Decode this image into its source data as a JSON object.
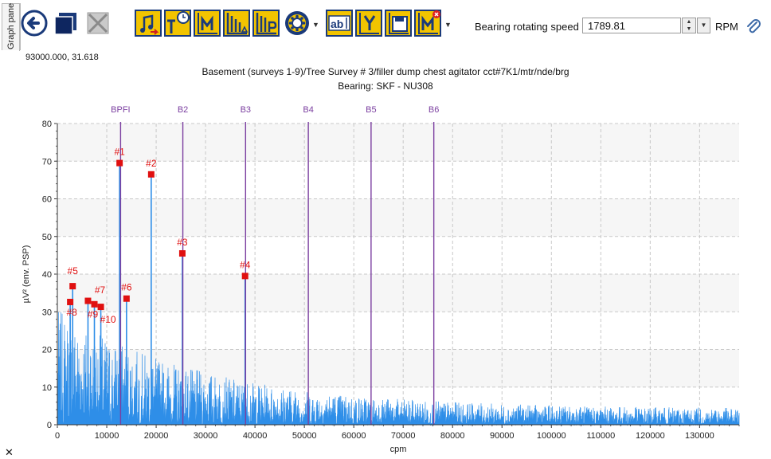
{
  "side_tab": {
    "label": "Graph pane"
  },
  "toolbar": {
    "buttons": [
      {
        "name": "back-button",
        "icon": "back-arrow-icon"
      },
      {
        "name": "window-button",
        "icon": "window-icon"
      },
      {
        "name": "disabled-view-button",
        "icon": "cross-box-icon"
      },
      {
        "name": "music-export-button",
        "icon": "note-export-icon"
      },
      {
        "name": "time-cursor-button",
        "icon": "t-clock-icon"
      },
      {
        "name": "m-marker-button",
        "icon": "m-cursor-icon"
      },
      {
        "name": "harmonic-button",
        "icon": "harmonic-cursor-icon"
      },
      {
        "name": "peak-button",
        "icon": "p-cursor-icon"
      },
      {
        "name": "bearing-button",
        "icon": "bearing-icon"
      },
      {
        "name": "text-label-button",
        "icon": "ab-text-icon"
      },
      {
        "name": "y-cursor-button",
        "icon": "y-cursor-icon"
      },
      {
        "name": "save-button",
        "icon": "floppy-icon"
      },
      {
        "name": "m-clear-button",
        "icon": "m-clear-icon"
      }
    ]
  },
  "speed": {
    "label": "Bearing rotating speed",
    "value": "1789.81",
    "unit": "RPM"
  },
  "coords": "93000.000, 31.618",
  "colors": {
    "toolbar_icon": "#1a3a7a",
    "toolbar_bg": "#f2c400",
    "spectrum": "#2e8ee8",
    "fault_line": "#7b3fa0",
    "marker": "#e01010"
  },
  "chart_data": {
    "type": "line",
    "title": "Basement (surveys 1-9)/Tree Survey # 3/filler dump chest agitator cct#7K1/mtr/nde/brg",
    "subtitle": "Bearing:  SKF - NU308",
    "xlabel": "cpm",
    "ylabel": "µV² (env. PSP)",
    "xlim": [
      0,
      138000
    ],
    "ylim": [
      0,
      80
    ],
    "x_ticks": [
      0,
      10000,
      20000,
      30000,
      40000,
      50000,
      60000,
      70000,
      80000,
      90000,
      100000,
      110000,
      120000,
      130000
    ],
    "y_ticks": [
      0,
      10,
      20,
      30,
      40,
      50,
      60,
      70,
      80
    ],
    "grid": true,
    "fault_lines": [
      {
        "label": "BPFI",
        "x": 12800
      },
      {
        "label": "B2",
        "x": 25400
      },
      {
        "label": "B3",
        "x": 38100
      },
      {
        "label": "B4",
        "x": 50800
      },
      {
        "label": "B5",
        "x": 63500
      },
      {
        "label": "B6",
        "x": 76200
      }
    ],
    "peaks": [
      {
        "label": "#1",
        "x": 12600,
        "y": 69.5
      },
      {
        "label": "#2",
        "x": 19000,
        "y": 66.5
      },
      {
        "label": "#3",
        "x": 25300,
        "y": 45.5
      },
      {
        "label": "#4",
        "x": 38000,
        "y": 39.5
      },
      {
        "label": "#5",
        "x": 3100,
        "y": 36.8
      },
      {
        "label": "#6",
        "x": 14000,
        "y": 33.5
      },
      {
        "label": "#7",
        "x": 7500,
        "y": 32
      },
      {
        "label": "#8",
        "x": 2600,
        "y": 32.6
      },
      {
        "label": "#9",
        "x": 6200,
        "y": 32.9
      },
      {
        "label": "#10",
        "x": 8800,
        "y": 31.3
      }
    ]
  }
}
